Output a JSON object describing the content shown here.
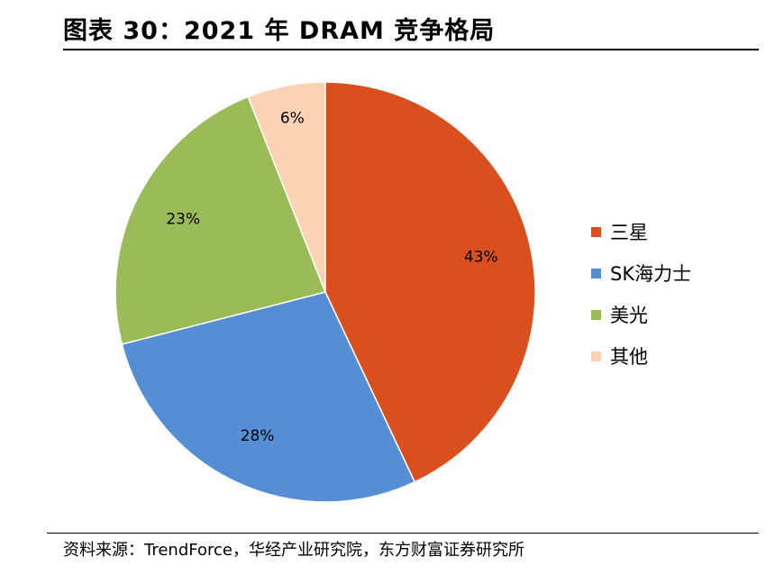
{
  "title": "图表 30：2021 年 DRAM 竞争格局",
  "source": "资料来源：TrendForce，华经产业研究院，东方财富证券研究所",
  "chart_data": {
    "type": "pie",
    "title": "",
    "start_angle": "12 o'clock",
    "direction": "clockwise",
    "legend_position": "right",
    "slices": [
      {
        "name": "三星",
        "value": 43,
        "label": "43%",
        "color": "#D94F1E"
      },
      {
        "name": "SK海力士",
        "value": 28,
        "label": "28%",
        "color": "#558ED5"
      },
      {
        "name": "美光",
        "value": 23,
        "label": "23%",
        "color": "#9BBB59"
      },
      {
        "name": "其他",
        "value": 6,
        "label": "6%",
        "color": "#FAD2B4"
      }
    ]
  }
}
